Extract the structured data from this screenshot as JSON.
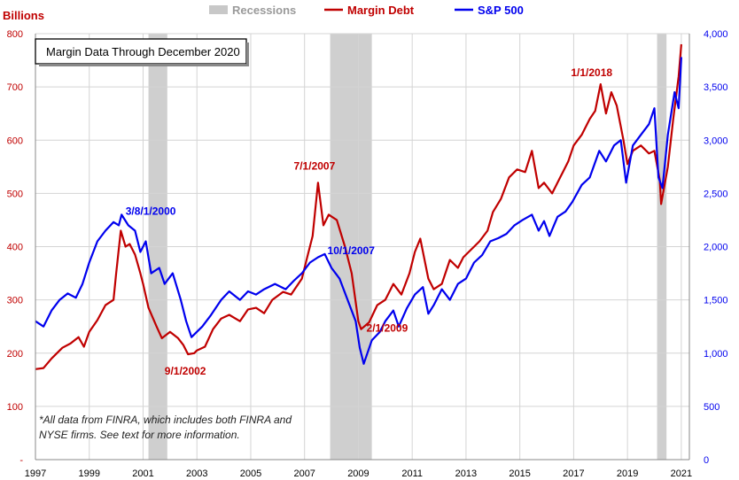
{
  "chart_data": {
    "type": "line",
    "title": "Margin Data Through December 2020",
    "y_left_label": "Billions",
    "y_left_ticks": [
      "-",
      "100",
      "200",
      "300",
      "400",
      "500",
      "600",
      "700",
      "800"
    ],
    "y_right_ticks": [
      "0",
      "500",
      "1,000",
      "1,500",
      "2,000",
      "2,500",
      "3,000",
      "3,500",
      "4,000"
    ],
    "ylim_left": [
      0,
      800
    ],
    "ylim_right": [
      0,
      4000
    ],
    "xlim": [
      1997,
      2021.3
    ],
    "x_ticks": [
      "1997",
      "1999",
      "2001",
      "2003",
      "2005",
      "2007",
      "2009",
      "2011",
      "2013",
      "2015",
      "2017",
      "2019",
      "2021"
    ],
    "grid": true,
    "legend_position": "top",
    "legend": [
      {
        "name": "Recessions",
        "color": "#c8c8c8",
        "kind": "band"
      },
      {
        "name": "Margin Debt",
        "color": "#c00000",
        "kind": "line"
      },
      {
        "name": "S&P 500",
        "color": "#0000ee",
        "kind": "line"
      }
    ],
    "recessions": [
      [
        2001.2,
        2001.9
      ],
      [
        2007.95,
        2009.5
      ],
      [
        2020.1,
        2020.45
      ]
    ],
    "series": [
      {
        "name": "Margin Debt",
        "axis": "left",
        "color": "#c00000",
        "points": [
          [
            1997.0,
            170
          ],
          [
            1997.3,
            172
          ],
          [
            1997.6,
            190
          ],
          [
            1998.0,
            210
          ],
          [
            1998.3,
            218
          ],
          [
            1998.6,
            230
          ],
          [
            1998.8,
            212
          ],
          [
            1999.0,
            240
          ],
          [
            1999.3,
            262
          ],
          [
            1999.6,
            290
          ],
          [
            1999.9,
            300
          ],
          [
            2000.0,
            350
          ],
          [
            2000.17,
            430
          ],
          [
            2000.35,
            400
          ],
          [
            2000.5,
            405
          ],
          [
            2000.7,
            385
          ],
          [
            2000.9,
            350
          ],
          [
            2001.0,
            330
          ],
          [
            2001.2,
            285
          ],
          [
            2001.5,
            250
          ],
          [
            2001.7,
            228
          ],
          [
            2002.0,
            240
          ],
          [
            2002.3,
            228
          ],
          [
            2002.5,
            215
          ],
          [
            2002.67,
            198
          ],
          [
            2002.9,
            200
          ],
          [
            2003.0,
            205
          ],
          [
            2003.3,
            212
          ],
          [
            2003.6,
            245
          ],
          [
            2003.9,
            265
          ],
          [
            2004.2,
            272
          ],
          [
            2004.6,
            260
          ],
          [
            2004.9,
            282
          ],
          [
            2005.2,
            285
          ],
          [
            2005.5,
            275
          ],
          [
            2005.8,
            300
          ],
          [
            2006.2,
            315
          ],
          [
            2006.5,
            310
          ],
          [
            2006.9,
            340
          ],
          [
            2007.1,
            380
          ],
          [
            2007.3,
            420
          ],
          [
            2007.5,
            520
          ],
          [
            2007.7,
            440
          ],
          [
            2007.9,
            460
          ],
          [
            2008.2,
            450
          ],
          [
            2008.5,
            400
          ],
          [
            2008.75,
            350
          ],
          [
            2009.0,
            260
          ],
          [
            2009.1,
            245
          ],
          [
            2009.4,
            258
          ],
          [
            2009.7,
            290
          ],
          [
            2010.0,
            300
          ],
          [
            2010.3,
            330
          ],
          [
            2010.6,
            310
          ],
          [
            2010.9,
            350
          ],
          [
            2011.1,
            390
          ],
          [
            2011.3,
            415
          ],
          [
            2011.6,
            340
          ],
          [
            2011.8,
            320
          ],
          [
            2012.1,
            330
          ],
          [
            2012.4,
            375
          ],
          [
            2012.7,
            360
          ],
          [
            2012.9,
            380
          ],
          [
            2013.2,
            395
          ],
          [
            2013.5,
            410
          ],
          [
            2013.8,
            430
          ],
          [
            2014.0,
            465
          ],
          [
            2014.3,
            490
          ],
          [
            2014.6,
            530
          ],
          [
            2014.9,
            545
          ],
          [
            2015.2,
            540
          ],
          [
            2015.45,
            580
          ],
          [
            2015.7,
            510
          ],
          [
            2015.9,
            520
          ],
          [
            2016.2,
            500
          ],
          [
            2016.5,
            530
          ],
          [
            2016.8,
            560
          ],
          [
            2017.0,
            590
          ],
          [
            2017.3,
            610
          ],
          [
            2017.6,
            640
          ],
          [
            2017.8,
            655
          ],
          [
            2018.0,
            705
          ],
          [
            2018.2,
            650
          ],
          [
            2018.4,
            690
          ],
          [
            2018.6,
            665
          ],
          [
            2018.85,
            600
          ],
          [
            2019.0,
            555
          ],
          [
            2019.2,
            580
          ],
          [
            2019.5,
            590
          ],
          [
            2019.8,
            575
          ],
          [
            2020.0,
            580
          ],
          [
            2020.2,
            525
          ],
          [
            2020.25,
            480
          ],
          [
            2020.5,
            550
          ],
          [
            2020.7,
            640
          ],
          [
            2020.9,
            720
          ],
          [
            2021.0,
            780
          ]
        ]
      },
      {
        "name": "S&P 500",
        "axis": "right",
        "color": "#0000ee",
        "points": [
          [
            1997.0,
            1300
          ],
          [
            1997.3,
            1250
          ],
          [
            1997.6,
            1400
          ],
          [
            1997.9,
            1500
          ],
          [
            1998.2,
            1560
          ],
          [
            1998.5,
            1520
          ],
          [
            1998.75,
            1650
          ],
          [
            1999.0,
            1850
          ],
          [
            1999.3,
            2050
          ],
          [
            1999.6,
            2150
          ],
          [
            1999.9,
            2230
          ],
          [
            2000.1,
            2200
          ],
          [
            2000.2,
            2300
          ],
          [
            2000.45,
            2200
          ],
          [
            2000.7,
            2150
          ],
          [
            2000.9,
            1950
          ],
          [
            2001.1,
            2050
          ],
          [
            2001.3,
            1750
          ],
          [
            2001.6,
            1800
          ],
          [
            2001.8,
            1650
          ],
          [
            2002.1,
            1750
          ],
          [
            2002.4,
            1500
          ],
          [
            2002.6,
            1300
          ],
          [
            2002.8,
            1150
          ],
          [
            2003.0,
            1200
          ],
          [
            2003.2,
            1250
          ],
          [
            2003.5,
            1350
          ],
          [
            2003.9,
            1500
          ],
          [
            2004.2,
            1580
          ],
          [
            2004.6,
            1500
          ],
          [
            2004.9,
            1580
          ],
          [
            2005.2,
            1550
          ],
          [
            2005.5,
            1600
          ],
          [
            2005.9,
            1650
          ],
          [
            2006.3,
            1600
          ],
          [
            2006.6,
            1680
          ],
          [
            2006.9,
            1750
          ],
          [
            2007.2,
            1850
          ],
          [
            2007.5,
            1900
          ],
          [
            2007.75,
            1930
          ],
          [
            2008.0,
            1800
          ],
          [
            2008.3,
            1700
          ],
          [
            2008.6,
            1500
          ],
          [
            2008.9,
            1300
          ],
          [
            2009.05,
            1050
          ],
          [
            2009.2,
            900
          ],
          [
            2009.5,
            1120
          ],
          [
            2009.8,
            1200
          ],
          [
            2010.0,
            1300
          ],
          [
            2010.3,
            1400
          ],
          [
            2010.5,
            1250
          ],
          [
            2010.8,
            1420
          ],
          [
            2011.1,
            1550
          ],
          [
            2011.4,
            1620
          ],
          [
            2011.6,
            1370
          ],
          [
            2011.8,
            1450
          ],
          [
            2012.1,
            1600
          ],
          [
            2012.4,
            1500
          ],
          [
            2012.7,
            1650
          ],
          [
            2013.0,
            1700
          ],
          [
            2013.3,
            1850
          ],
          [
            2013.6,
            1920
          ],
          [
            2013.9,
            2050
          ],
          [
            2014.2,
            2080
          ],
          [
            2014.5,
            2120
          ],
          [
            2014.8,
            2200
          ],
          [
            2015.1,
            2250
          ],
          [
            2015.45,
            2300
          ],
          [
            2015.7,
            2150
          ],
          [
            2015.9,
            2240
          ],
          [
            2016.1,
            2100
          ],
          [
            2016.4,
            2280
          ],
          [
            2016.7,
            2330
          ],
          [
            2016.95,
            2420
          ],
          [
            2017.3,
            2580
          ],
          [
            2017.6,
            2650
          ],
          [
            2017.95,
            2900
          ],
          [
            2018.2,
            2800
          ],
          [
            2018.5,
            2950
          ],
          [
            2018.75,
            3000
          ],
          [
            2018.95,
            2600
          ],
          [
            2019.2,
            2950
          ],
          [
            2019.5,
            3050
          ],
          [
            2019.8,
            3150
          ],
          [
            2020.0,
            3300
          ],
          [
            2020.15,
            2650
          ],
          [
            2020.3,
            2550
          ],
          [
            2020.5,
            3050
          ],
          [
            2020.75,
            3450
          ],
          [
            2020.9,
            3300
          ],
          [
            2021.0,
            3780
          ]
        ]
      }
    ],
    "annotations": [
      {
        "text": "3/8/1/2000",
        "color": "#0000ee",
        "x": 2000.35,
        "y": 2300,
        "axis": "right"
      },
      {
        "text": "9/1/2002",
        "color": "#c00000",
        "x": 2001.8,
        "y": 160,
        "axis": "left"
      },
      {
        "text": "7/1/2007",
        "color": "#c00000",
        "x": 2006.6,
        "y": 545,
        "axis": "left"
      },
      {
        "text": "10/1/2007",
        "color": "#0000ee",
        "x": 2007.85,
        "y": 1930,
        "axis": "right"
      },
      {
        "text": "2/1/2009",
        "color": "#c00000",
        "x": 2009.3,
        "y": 240,
        "axis": "left"
      },
      {
        "text": "1/1/2018",
        "color": "#c00000",
        "x": 2016.9,
        "y": 720,
        "axis": "left"
      }
    ],
    "footnote": "*All data from FINRA, which includes both FINRA and NYSE firms. See text for more information."
  }
}
